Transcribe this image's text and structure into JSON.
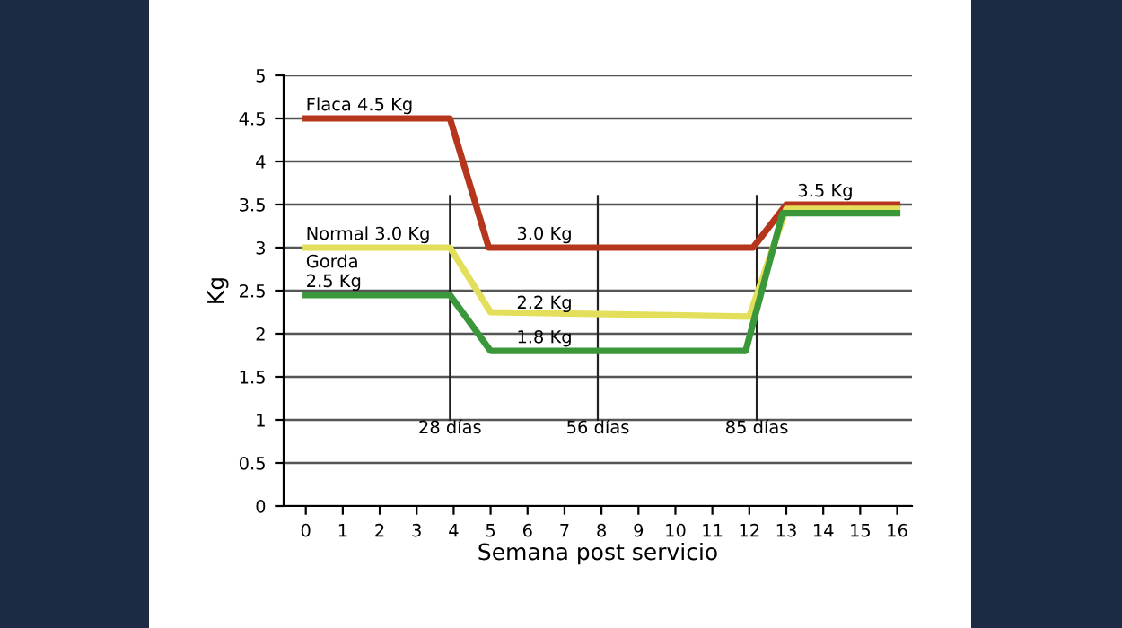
{
  "chart_data": {
    "type": "line",
    "xlabel": "Semana post servicio",
    "ylabel": "Kg",
    "xlim": [
      -0.6,
      16.4
    ],
    "xticks": [
      0,
      1,
      2,
      3,
      4,
      5,
      6,
      7,
      8,
      9,
      10,
      11,
      12,
      13,
      14,
      15,
      16
    ],
    "ylim": [
      0,
      5
    ],
    "yticks": [
      0,
      0.5,
      1,
      1.5,
      2,
      2.5,
      3,
      3.5,
      4,
      4.5,
      5
    ],
    "grid": "y",
    "legend": false,
    "marker": "none",
    "line_style": "solid",
    "series": [
      {
        "color": "#b5361c",
        "x": [
          0,
          3.9,
          4.95,
          12.1,
          13.0,
          16
        ],
        "values": [
          4.5,
          4.5,
          3.0,
          3.0,
          3.5,
          3.5
        ]
      },
      {
        "color": "#e4df5a",
        "x": [
          0,
          3.9,
          5.0,
          12.0,
          13.0,
          16
        ],
        "values": [
          3.0,
          3.0,
          2.25,
          2.2,
          3.45,
          3.45
        ]
      },
      {
        "color": "#3a983a",
        "x": [
          0,
          3.9,
          5.0,
          11.9,
          12.9,
          16
        ],
        "values": [
          2.45,
          2.45,
          1.8,
          1.8,
          3.4,
          3.4
        ]
      }
    ],
    "ref_lines": [
      {
        "axis": "x",
        "value": 3.9,
        "label": "28 días",
        "color": "#222222"
      },
      {
        "axis": "x",
        "value": 7.9,
        "label": "56 días",
        "color": "#222222"
      },
      {
        "axis": "x",
        "value": 12.2,
        "label": "85 días",
        "color": "#222222"
      }
    ],
    "annotations": [
      {
        "text": "Flaca 4.5 Kg",
        "x": 0,
        "y": 4.5
      },
      {
        "text": "Normal 3.0 Kg",
        "x": 0,
        "y": 3.0
      },
      {
        "text": "Gorda\n2.5 Kg",
        "x": 0,
        "y": 2.45
      },
      {
        "text": "3.0 Kg",
        "x": 5.7,
        "y": 3.0
      },
      {
        "text": "2.2 Kg",
        "x": 5.7,
        "y": 2.2
      },
      {
        "text": "1.8 Kg",
        "x": 5.7,
        "y": 1.8
      },
      {
        "text": "3.5 Kg",
        "x": 13.3,
        "y": 3.5
      }
    ]
  }
}
